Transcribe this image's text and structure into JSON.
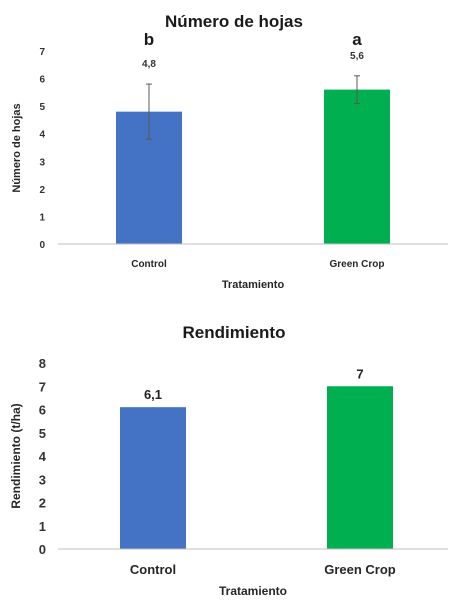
{
  "colors": {
    "control": "#4472C4",
    "green_crop": "#00B050",
    "axis": "#BFBFBF",
    "error_bar": "#595959"
  },
  "chart_data": [
    {
      "type": "bar",
      "title": "Número de hojas",
      "xlabel": "Tratamiento",
      "ylabel": "Número de hojas",
      "categories": [
        "Control",
        "Green Crop"
      ],
      "values": [
        4.8,
        5.6
      ],
      "value_labels": [
        "4,8",
        "5,6"
      ],
      "error": [
        1.0,
        0.5
      ],
      "significance": [
        "b",
        "a"
      ],
      "ylim": [
        0,
        7
      ],
      "yticks": [
        "0",
        "1",
        "2",
        "3",
        "4",
        "5",
        "6",
        "7"
      ],
      "grid": false
    },
    {
      "type": "bar",
      "title": "Rendimiento",
      "xlabel": "Tratamiento",
      "ylabel": "Rendimiento (t/ha)",
      "categories": [
        "Control",
        "Green Crop"
      ],
      "values": [
        6.1,
        7
      ],
      "value_labels": [
        "6,1",
        "7"
      ],
      "ylim": [
        0,
        8
      ],
      "yticks": [
        "0",
        "1",
        "2",
        "3",
        "4",
        "5",
        "6",
        "7",
        "8"
      ],
      "grid": false
    }
  ]
}
